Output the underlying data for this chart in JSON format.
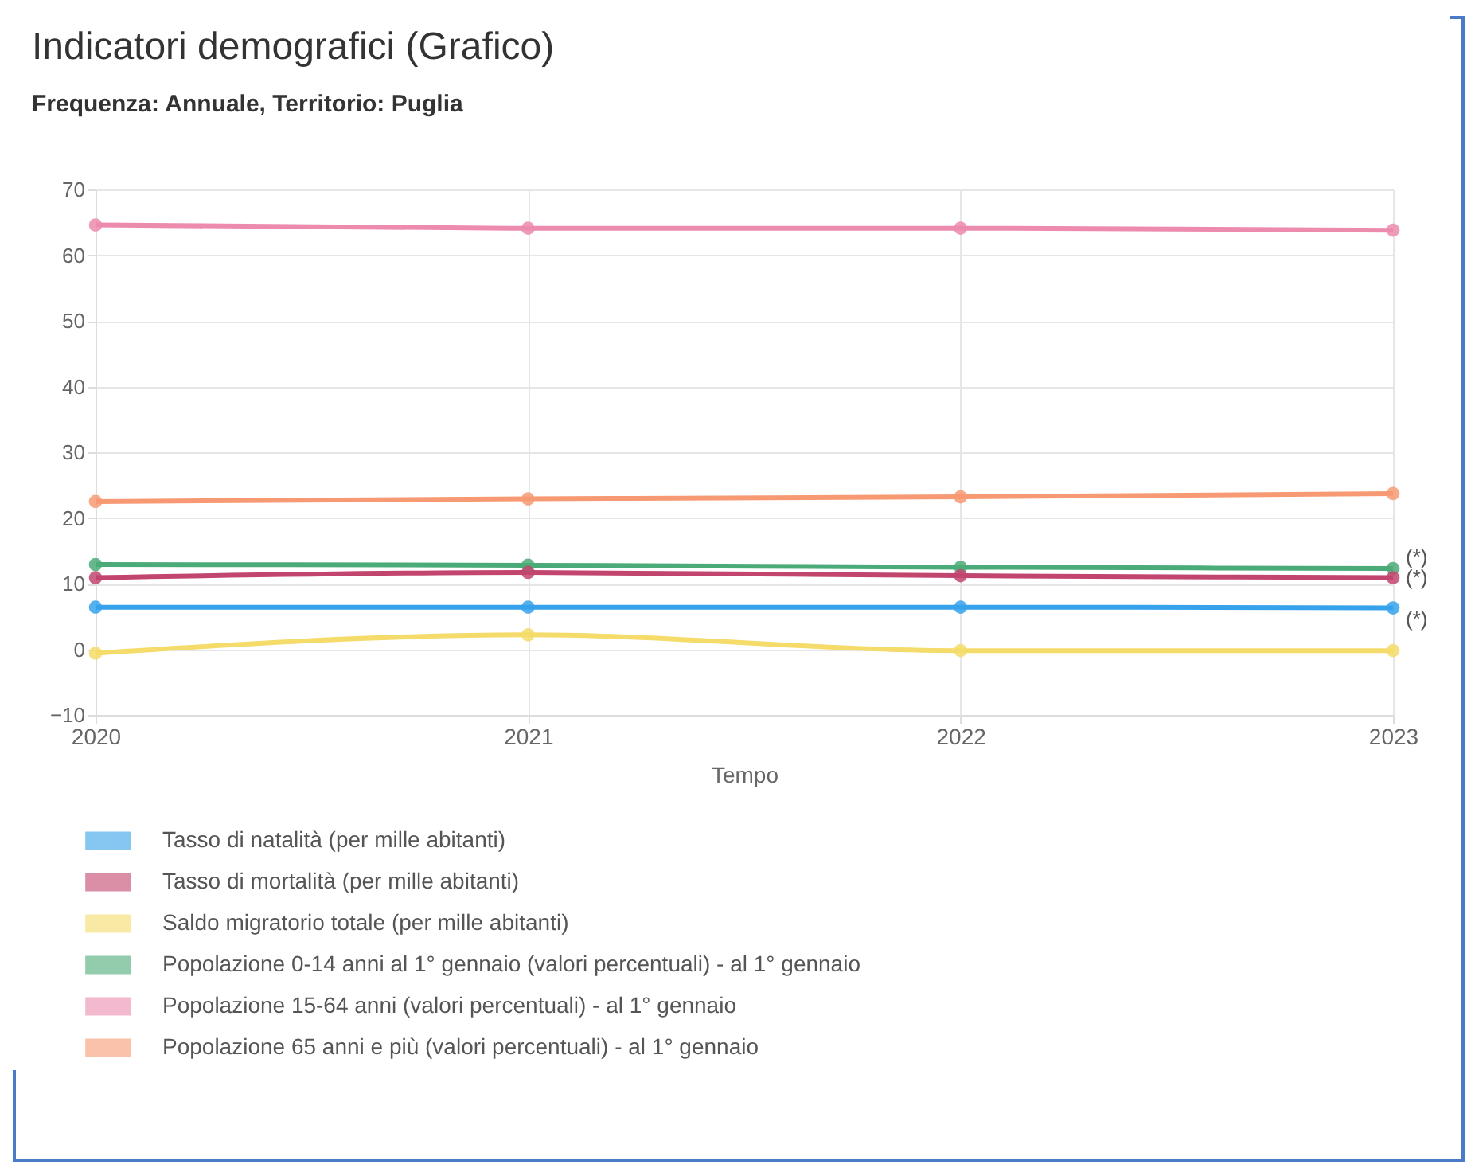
{
  "chart_data": {
    "type": "line",
    "title": "Indicatori demografici (Grafico)",
    "subtitle": "Frequenza: Annuale, Territorio: Puglia",
    "xlabel": "Tempo",
    "categories": [
      "2020",
      "2021",
      "2022",
      "2023"
    ],
    "series": [
      {
        "name": "Tasso di natalità (per mille abitanti)",
        "color": "#36a2eb",
        "values": [
          6.4,
          6.4,
          6.4,
          6.3
        ]
      },
      {
        "name": "Tasso di mortalità (per mille abitanti)",
        "color": "#c2456e",
        "values": [
          10.9,
          11.7,
          11.2,
          10.9
        ]
      },
      {
        "name": "Saldo migratorio totale (per mille abitanti)",
        "color": "#f5dc6a",
        "values": [
          -0.6,
          2.2,
          -0.2,
          -0.2
        ]
      },
      {
        "name": "Popolazione 0-14 anni al 1° gennaio (valori percentuali) - al 1° gennaio",
        "color": "#4bab78",
        "values": [
          12.9,
          12.8,
          12.5,
          12.3
        ]
      },
      {
        "name": "Popolazione 15-64 anni (valori percentuali) - al 1° gennaio",
        "color": "#ec8bae",
        "values": [
          64.6,
          64.1,
          64.1,
          63.8
        ]
      },
      {
        "name": "Popolazione 65 anni e più (valori percentuali) - al 1° gennaio",
        "color": "#f79a73",
        "values": [
          22.5,
          22.9,
          23.2,
          23.7
        ]
      }
    ],
    "ylim": [
      -10,
      70
    ],
    "yticks": [
      -10,
      0,
      10,
      20,
      30,
      40,
      50,
      60,
      70
    ],
    "grid": true,
    "legend": "bottom",
    "marker": "circle",
    "annotations": [
      {
        "text": "(*)",
        "x": "2023",
        "y": 12.3
      },
      {
        "text": "(*)",
        "x": "2023",
        "y": 10.9
      },
      {
        "text": "(*)",
        "x": "2023",
        "y": 6.3
      }
    ]
  }
}
